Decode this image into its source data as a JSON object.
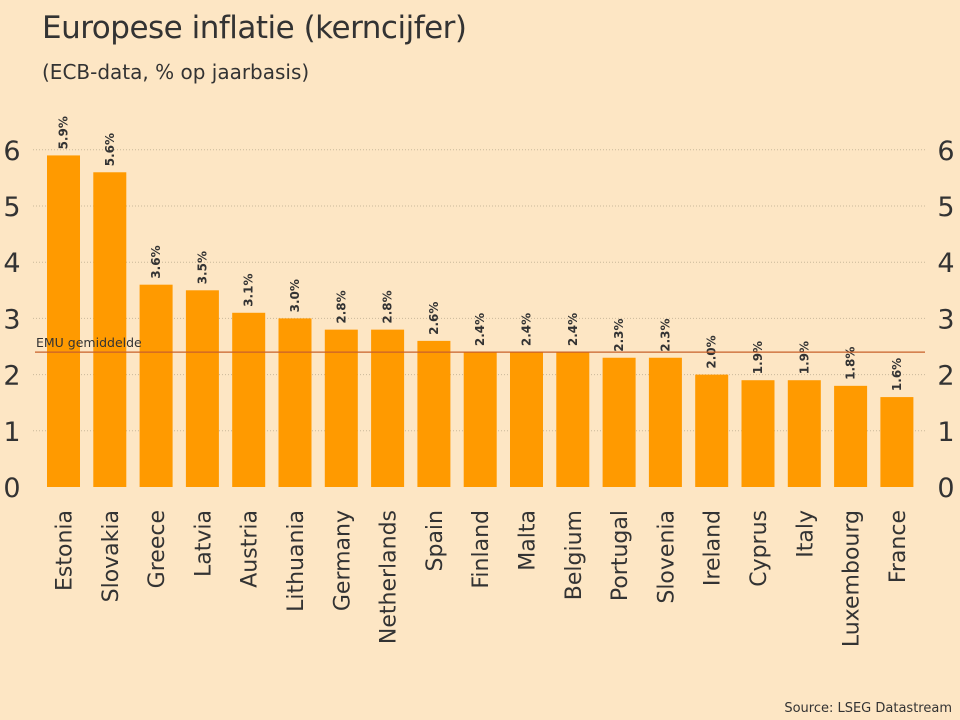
{
  "chart_data": {
    "type": "bar",
    "title": "Europese inflatie (kerncijfer)",
    "subtitle": "(ECB-data, % op jaarbasis)",
    "source": "Source: LSEG Datastream",
    "categories": [
      "Estonia",
      "Slovakia",
      "Greece",
      "Latvia",
      "Austria",
      "Lithuania",
      "Germany",
      "Netherlands",
      "Spain",
      "Finland",
      "Malta",
      "Belgium",
      "Portugal",
      "Slovenia",
      "Ireland",
      "Cyprus",
      "Italy",
      "Luxembourg",
      "France"
    ],
    "values": [
      5.9,
      5.6,
      3.6,
      3.5,
      3.1,
      3.0,
      2.8,
      2.8,
      2.6,
      2.4,
      2.4,
      2.4,
      2.3,
      2.3,
      2.0,
      1.9,
      1.9,
      1.8,
      1.6
    ],
    "data_labels": [
      "5.9%",
      "5.6%",
      "3.6%",
      "3.5%",
      "3.1%",
      "3.0%",
      "2.8%",
      "2.8%",
      "2.6%",
      "2.4%",
      "2.4%",
      "2.4%",
      "2.3%",
      "2.3%",
      "2.0%",
      "1.9%",
      "1.9%",
      "1.8%",
      "1.6%"
    ],
    "yticks": [
      0,
      1,
      2,
      3,
      4,
      5,
      6
    ],
    "ylim": [
      0,
      6
    ],
    "xlabel": "",
    "ylabel": "",
    "grid": true,
    "reference_line": {
      "label": "EMU gemiddelde",
      "value": 2.4
    },
    "colors": {
      "bar": "#ff9a00",
      "reference": "#c8602a",
      "background": "#fde6c4",
      "text": "#333333"
    }
  }
}
